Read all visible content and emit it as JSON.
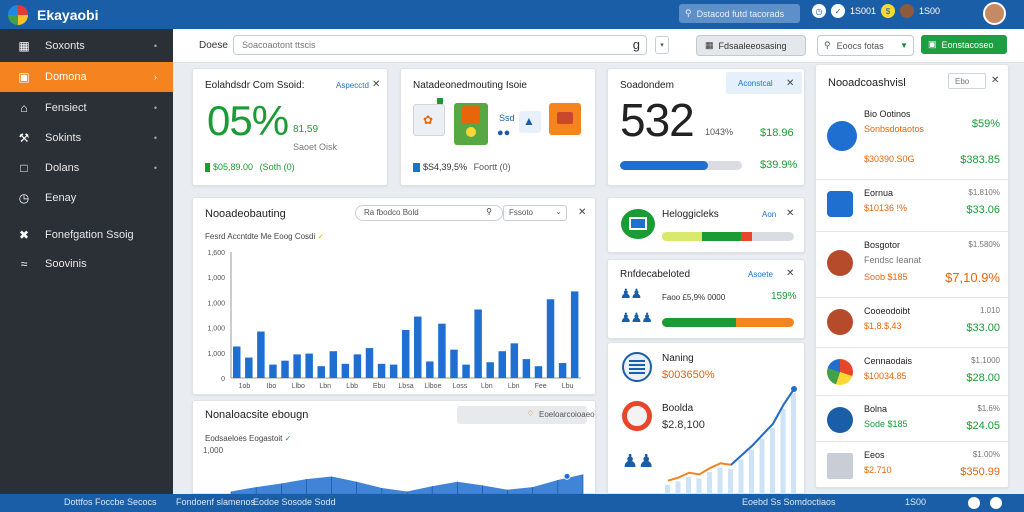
{
  "app": {
    "title": "Ekayaobi"
  },
  "topbar": {
    "search_placeholder": "Dstacod futd tacorads",
    "stat1": "1S001",
    "stat2": "1S00",
    "icons": [
      "clock-icon",
      "shield-icon",
      "coin-icon",
      "user-icon"
    ]
  },
  "sidebar": {
    "items": [
      {
        "label": "Soxonts",
        "icon": "calendar-icon",
        "active": false
      },
      {
        "label": "Domona",
        "icon": "folder-icon",
        "active": true
      },
      {
        "label": "Fensiect",
        "icon": "home-icon",
        "active": false
      },
      {
        "label": "Sokints",
        "icon": "wrench-icon",
        "active": false
      },
      {
        "label": "Dolans",
        "icon": "document-icon",
        "active": false
      },
      {
        "label": "Eenay",
        "icon": "clock-icon",
        "active": false
      },
      {
        "label": "Fonefgation Ssoig",
        "icon": "tools-icon",
        "active": false
      },
      {
        "label": "Soovinis",
        "icon": "wifi-icon",
        "active": false
      }
    ]
  },
  "toolbar": {
    "label": "Doese",
    "search_value": "Soacoaotont ttscis",
    "search_glyph": "g",
    "button_label": "Fdsaaleeosasing",
    "select_label": "Eoocs fotas",
    "green_button_label": "Eonstacoseo"
  },
  "card1": {
    "title": "Eolahdsdr Com Ssoid:",
    "link": "Aspecctd",
    "big_value": "05%",
    "side_value": "81,59",
    "sub_label": "Saoet Oisk",
    "footer_value": "$05,89.00",
    "footer_note": "(Soth (0)"
  },
  "card2": {
    "title": "Natadeonedmouting Isoie",
    "footer_value": "$S4,39,5%",
    "footer_note": "Foortt (0)",
    "tile_label": "Ssd"
  },
  "card3": {
    "title": "Soadondem",
    "link": "Aconstcal",
    "big_value": "532",
    "side_value": "1043%",
    "value1": "$18.96",
    "value2": "$39.9%",
    "progress": 0.72
  },
  "chart1": {
    "title": "Nooadeobauting",
    "filter_label": "Ra fbodco Bold",
    "select_label": "Fssoto",
    "subtitle": "Fesrd Accntdte Me Eoog Cosdi",
    "tick_labels": [
      "1,600",
      "1,000",
      "1,000",
      "1,000",
      "1,000",
      "0"
    ],
    "x_labels": [
      "1ob",
      "Ibo",
      "Llbo",
      "Lbn",
      "Lbb",
      "Ebu",
      "Lbsa",
      "Llboe",
      "Loss",
      "Lbn",
      "Lbn",
      "Fee",
      "Lbu"
    ]
  },
  "chart_data": [
    {
      "type": "bar",
      "title": "Nooadeobauting",
      "values": [
        400,
        260,
        590,
        170,
        220,
        300,
        310,
        150,
        340,
        180,
        300,
        380,
        180,
        170,
        610,
        780,
        210,
        690,
        360,
        170,
        870,
        200,
        340,
        440,
        240,
        150,
        1000,
        190,
        1100
      ],
      "ylim": [
        0,
        1600
      ]
    },
    {
      "type": "area",
      "title": "Nonaloacsite ebougn",
      "values": [
        80,
        180,
        260,
        360,
        420,
        300,
        160,
        80,
        200,
        300,
        220,
        120,
        180,
        340,
        470
      ],
      "ylim": [
        0,
        1000
      ]
    },
    {
      "type": "line",
      "title": "Sparkline trend",
      "values": [
        4,
        6,
        9,
        8,
        12,
        15,
        14,
        20,
        26,
        33,
        40,
        52,
        62
      ]
    }
  ],
  "chart2": {
    "title": "Nonaloacsite ebougn",
    "button_label": "Eoeloarcoioaeo",
    "subtitle": "Eodsaeloes Eogastoit",
    "tick_label": "1,000"
  },
  "card4": {
    "title": "Heloggicleks",
    "link": "Aon",
    "segments": [
      {
        "color": "#d8e96b",
        "fraction": 0.3
      },
      {
        "color": "#1a9b35",
        "fraction": 0.3
      },
      {
        "color": "#e8452a",
        "fraction": 0.08
      }
    ]
  },
  "card5": {
    "title": "Rnfdecabeloted",
    "link": "Asoete",
    "stat_text": "Faoo £5,9% 0000",
    "stat_pct": "159%",
    "progress": 0.56
  },
  "card6": {
    "row1_title": "Naning",
    "row1_value": "$003650%",
    "row2_title": "Boolda",
    "row2_value": "$2.8,100"
  },
  "right_panel": {
    "title": "Nooadcoashvisl",
    "select_label": "Ebo",
    "items": [
      {
        "icon": "gear-icon",
        "name": "Bio Ootinos",
        "sub": "Sonbsdotaotos",
        "pct": "$59%",
        "val": "",
        "sub2": "$30390.S0G",
        "val2": "$383.85",
        "color": "#1e6fd0"
      },
      {
        "icon": "monitor-icon",
        "name": "Eornua",
        "sub": "$10136 !%",
        "pct": "$1.810%",
        "val": "$33.06",
        "color": "#1e6fd0"
      },
      {
        "icon": "person-icon",
        "name": "Bosgotor",
        "sub": "Fendsc Ieanat",
        "pct": "$1.580%",
        "val": "$7,10.9%",
        "sub2": "Soob $185",
        "color": "#b54b2a"
      },
      {
        "icon": "person-icon",
        "name": "Cooeodoibt",
        "sub": "$1,8.$,43",
        "pct": "1.010",
        "val": "$33.00",
        "color": "#b54b2a"
      },
      {
        "icon": "pie-icon",
        "name": "Cennaodais",
        "sub": "$10034.85",
        "pct": "$1.1000",
        "val": "$28.00",
        "color": "#43a047"
      },
      {
        "icon": "person-icon",
        "name": "Bolna",
        "sub": "Sode $185",
        "pct": "$1.6%",
        "val": "$24.05",
        "color": "#1b5ea8"
      },
      {
        "icon": "building-icon",
        "name": "Eeos",
        "sub": "$2.710",
        "pct": "$1.00%",
        "val": "$350.99",
        "color": "#999"
      }
    ]
  },
  "statusbar": {
    "left1": "Dottfos Foccbe Secocs",
    "left2": "Fondoenf slamenos",
    "left3": "Eodoe Sosode Sodd",
    "right1": "Eoebd Ss Somdoctiaos",
    "right2": "1S00"
  }
}
